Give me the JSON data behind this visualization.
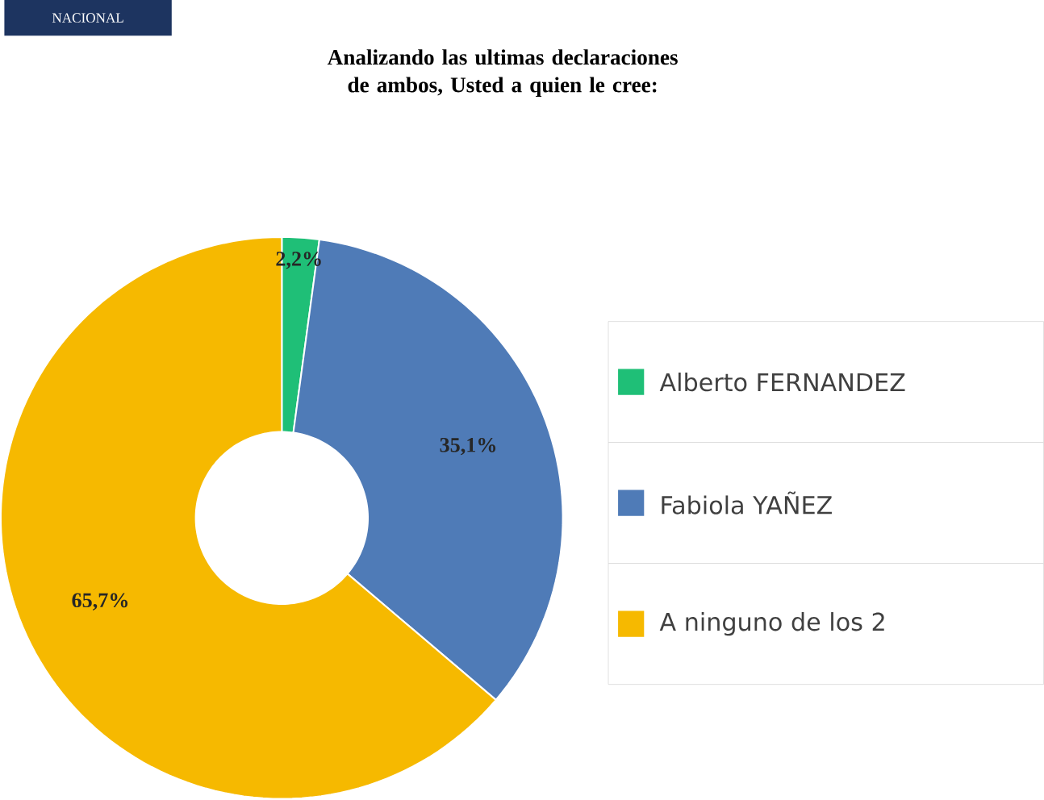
{
  "chart_data": {
    "type": "donut",
    "title": "Analizando las ultimas declaraciones de ambos, Usted a quien le cree:",
    "categories": [
      "Alberto FERNANDEZ",
      "Fabiola YAÑEZ",
      "A ninguno de los 2"
    ],
    "values": [
      2.2,
      35.1,
      65.7
    ],
    "colors": [
      "#1fbf77",
      "#4f7bb7",
      "#f6b900"
    ],
    "value_labels": [
      "2,2%",
      "35,1%",
      "65,7%"
    ],
    "legend": "right",
    "annotations": [
      "NACIONAL"
    ]
  }
}
